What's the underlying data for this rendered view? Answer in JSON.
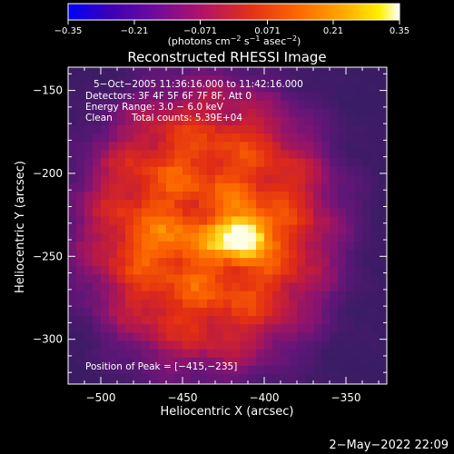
{
  "chart_data": {
    "type": "heatmap",
    "title": "Reconstructed RHESSI Image",
    "xlabel": "Heliocentric X (arcsec)",
    "ylabel": "Heliocentric Y (arcsec)",
    "xlim": [
      -520,
      -325
    ],
    "ylim": [
      -327,
      -136
    ],
    "x_ticks": [
      "−500",
      "−450",
      "−400",
      "−350"
    ],
    "x_tick_values": [
      -500,
      -450,
      -400,
      -350
    ],
    "y_ticks": [
      "−150",
      "−200",
      "−250",
      "−300"
    ],
    "y_tick_values": [
      -150,
      -200,
      -250,
      -300
    ],
    "colorbar": {
      "min": -0.35,
      "max": 0.35,
      "ticks": [
        "−0.35",
        "−0.21",
        "−0.071",
        "0.071",
        "0.21",
        "0.35"
      ],
      "tick_values": [
        -0.35,
        -0.21,
        -0.071,
        0.071,
        0.21,
        0.35
      ],
      "unit_prefix": "(photons cm",
      "unit_exp1": "−2",
      "unit_mid1": " s",
      "unit_exp2": "−1",
      "unit_mid2": " asec",
      "unit_exp3": "−2",
      "unit_suffix": ")",
      "colormap": [
        "#0000ff",
        "#3a00b8",
        "#6a0aa0",
        "#b0126a",
        "#e23018",
        "#ff6a00",
        "#ffae00",
        "#fff000",
        "#ffffff"
      ]
    },
    "peak": {
      "x": -415,
      "y": -235,
      "value": 0.35
    },
    "annotations": {
      "time_range": "5−Oct−2005 11:36:16.000 to 11:42:16.000",
      "detectors": "Detectors: 3F 4F 5F 6F 7F 8F, Att 0",
      "energy_range": "Energy Range: 3.0 − 6.0 keV",
      "clean_label": "Clean",
      "total_counts": "Total counts: 5.39E+04",
      "peak_position": "Position of Peak = [−415,−235]"
    },
    "grid": false
  },
  "footer": {
    "timestamp": "2−May−2022 22:09"
  }
}
